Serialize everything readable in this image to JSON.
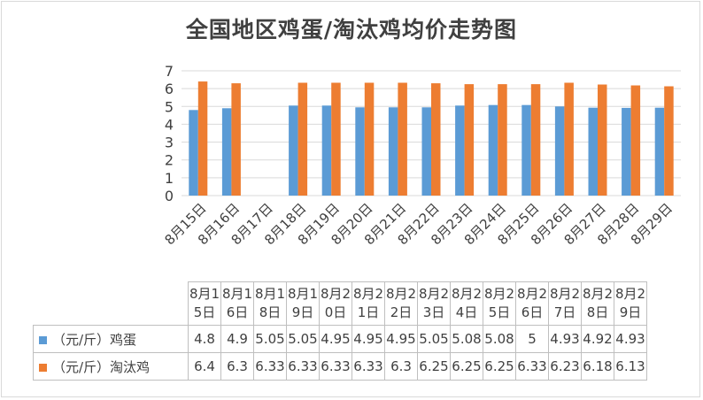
{
  "title": "全国地区鸡蛋/淘汰鸡均价走势图",
  "colors": {
    "egg": "#5b9bd5",
    "hen": "#ed7d31",
    "grid": "#d9d9d9",
    "text": "#404040"
  },
  "chart_data": {
    "type": "bar",
    "title": "全国地区鸡蛋/淘汰鸡均价走势图",
    "categories": [
      "8月15日",
      "8月16日",
      "8月17日",
      "8月18日",
      "8月19日",
      "8月20日",
      "8月21日",
      "8月22日",
      "8月23日",
      "8月24日",
      "8月25日",
      "8月26日",
      "8月27日",
      "8月28日",
      "8月29日"
    ],
    "table_headers": [
      "8月1 5日",
      "8月1 6日",
      "8月1 8日",
      "8月1 9日",
      "8月2 0日",
      "8月2 1日",
      "8月2 2日",
      "8月2 3日",
      "8月2 4日",
      "8月2 5日",
      "8月2 6日",
      "8月2 7日",
      "8月2 8日",
      "8月2 9日"
    ],
    "series": [
      {
        "name": "（元/斤）鸡蛋",
        "values": [
          4.8,
          4.9,
          null,
          5.05,
          5.05,
          4.95,
          4.95,
          4.95,
          5.05,
          5.08,
          5.08,
          5,
          4.93,
          4.92,
          4.93
        ],
        "table_values": [
          "4.8",
          "4.9",
          "5.05",
          "5.05",
          "4.95",
          "4.95",
          "4.95",
          "5.05",
          "5.08",
          "5.08",
          "5",
          "4.93",
          "4.92",
          "4.93"
        ]
      },
      {
        "name": "（元/斤）淘汰鸡",
        "values": [
          6.4,
          6.3,
          null,
          6.33,
          6.33,
          6.33,
          6.33,
          6.3,
          6.25,
          6.25,
          6.25,
          6.33,
          6.23,
          6.18,
          6.13
        ],
        "table_values": [
          "6.4",
          "6.3",
          "6.33",
          "6.33",
          "6.33",
          "6.33",
          "6.3",
          "6.25",
          "6.25",
          "6.25",
          "6.33",
          "6.23",
          "6.18",
          "6.13"
        ]
      }
    ],
    "ylim": [
      0,
      7
    ],
    "yticks": [
      0,
      1,
      2,
      3,
      4,
      5,
      6,
      7
    ],
    "grid": true,
    "legend": "in data table"
  }
}
